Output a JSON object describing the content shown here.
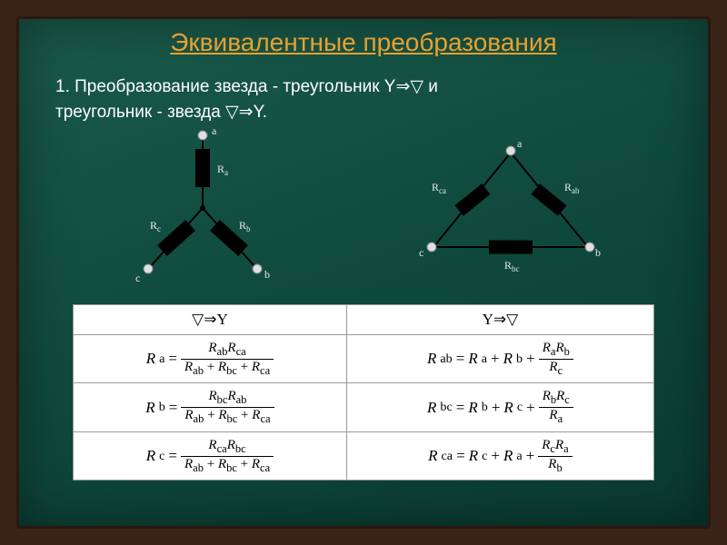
{
  "title": "Эквивалентные преобразования",
  "subtitle_line1": "1. Преобразование звезда - треугольник Y⇒▽ и",
  "subtitle_line2": "треугольник - звезда ▽⇒Y.",
  "colors": {
    "frame": "#3a2418",
    "board_grad_top": "#1a5a4a",
    "board_grad_bottom": "#0a3a30",
    "title": "#e8a030",
    "text": "#ffffff",
    "table_bg": "#ffffff",
    "table_border": "#999999",
    "resistor_fill": "#000000",
    "node_fill": "#e0e0e0"
  },
  "star": {
    "labels": {
      "Ra": "Rₐ",
      "Rb": "R_b",
      "Rc": "R_c",
      "a": "a",
      "b": "b",
      "c": "c"
    },
    "resistor": {
      "w": 16,
      "h": 42
    }
  },
  "delta": {
    "labels": {
      "Rab": "R_ab",
      "Rbc": "R_bc",
      "Rca": "R_ca",
      "a": "a",
      "b": "b",
      "c": "c"
    },
    "resistor": {
      "w": 15,
      "h": 38
    }
  },
  "table": {
    "headers": [
      "▽⇒Y",
      "Y⇒▽"
    ],
    "rows": [
      {
        "left": {
          "lhs": "R_a",
          "num": "R_ab·R_ca",
          "den": "R_ab + R_bc + R_ca"
        },
        "right": {
          "lhs": "R_ab",
          "base": "R_a + R_b",
          "num": "R_a·R_b",
          "den": "R_c"
        }
      },
      {
        "left": {
          "lhs": "R_b",
          "num": "R_bc·R_ab",
          "den": "R_ab + R_bc + R_ca"
        },
        "right": {
          "lhs": "R_bc",
          "base": "R_b + R_c",
          "num": "R_b·R_c",
          "den": "R_a"
        }
      },
      {
        "left": {
          "lhs": "R_c",
          "num": "R_ca·R_bc",
          "den": "R_ab + R_bc + R_ca"
        },
        "right": {
          "lhs": "R_ca",
          "base": "R_c + R_a",
          "num": "R_c·R_a",
          "den": "R_b"
        }
      }
    ]
  }
}
